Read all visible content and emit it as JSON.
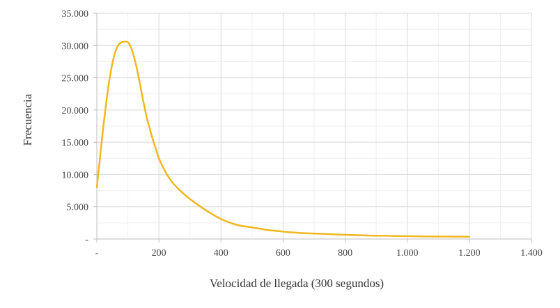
{
  "chart_data": {
    "type": "line",
    "xlabel": "Velocidad de llegada (300 segundos)",
    "ylabel": "Frecuencia",
    "xlim": [
      0,
      1400
    ],
    "ylim": [
      0,
      35000
    ],
    "x_ticks": [
      0,
      200,
      400,
      600,
      800,
      1000,
      1200,
      1400
    ],
    "x_tick_labels": [
      "-",
      "200",
      "400",
      "600",
      "800",
      "1.000",
      "1.200",
      "1.400"
    ],
    "y_ticks": [
      0,
      5000,
      10000,
      15000,
      20000,
      25000,
      30000,
      35000
    ],
    "y_tick_labels": [
      "-",
      "5.000",
      "10.000",
      "15.000",
      "20.000",
      "25.000",
      "30.000",
      "35.000"
    ],
    "grid": true,
    "legend": "none",
    "line_color": "#f2b71f",
    "series": [
      {
        "x": [
          0,
          10,
          20,
          30,
          40,
          50,
          60,
          70,
          80,
          90,
          100,
          110,
          120,
          130,
          140,
          150,
          160,
          170,
          180,
          190,
          200,
          220,
          240,
          260,
          280,
          300,
          350,
          400,
          450,
          500,
          550,
          600,
          650,
          700,
          750,
          800,
          850,
          900,
          950,
          1000,
          1050,
          1100,
          1150,
          1200
        ],
        "y": [
          8000,
          12500,
          17000,
          21000,
          24500,
          27200,
          29100,
          30100,
          30500,
          30600,
          30500,
          29700,
          28200,
          26200,
          23800,
          21300,
          19000,
          17200,
          15500,
          14000,
          12500,
          10500,
          9000,
          7900,
          7000,
          6200,
          4500,
          3100,
          2200,
          1800,
          1400,
          1150,
          950,
          850,
          750,
          650,
          580,
          520,
          480,
          440,
          410,
          390,
          370,
          350
        ]
      }
    ]
  }
}
